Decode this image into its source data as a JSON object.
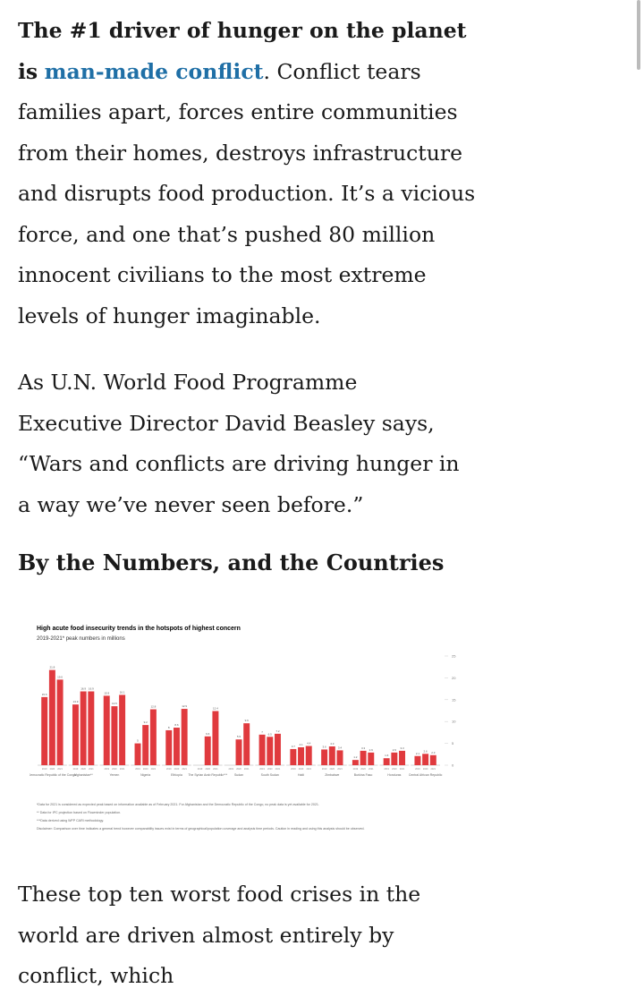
{
  "article": {
    "paragraphs": [
      {
        "bold": "The #1 driver of hunger on the planet is",
        "link": "man-made conflict",
        "text": ". Conflict tears families apart, forces entire communities from their homes, destroys infrastructure and disrupts food production. It’s a vicious force, and one that’s pushed 80 million innocent civilians to the most extreme levels of hunger imaginable."
      },
      {
        "text": "As U.N. World Food Programme Executive Director David Beasley says, “Wars and conflicts are driving hunger in a way we’ve never seen before.”"
      }
    ],
    "heading": "By the Numbers, and the Countries",
    "closing": "These top ten worst food crises in the world are driven almost entirely by conflict, which"
  },
  "chart_data": {
    "type": "bar",
    "title": "High acute food insecurity trends in the hotspots of highest concern",
    "subtitle": "2019-2021* peak numbers in millions",
    "categories": [
      "Democratic Republic of the Congo",
      "Afghanistan**",
      "Yemen",
      "Nigeria",
      "Ethiopia",
      "The Syrian Arab Republic***",
      "Sudan",
      "South Sudan",
      "Haiti",
      "Zimbabwe",
      "Burkina Faso",
      "Honduras",
      "Central African Republic"
    ],
    "series": [
      {
        "name": "2019",
        "color": "#e03a3e",
        "values": [
          15.6,
          13.9,
          15.9,
          5.0,
          8.0,
          null,
          null,
          7.0,
          3.7,
          3.6,
          1.2,
          1.6,
          2.1
        ]
      },
      {
        "name": "2020",
        "color": "#e03a3e",
        "values": [
          21.8,
          16.9,
          13.5,
          9.2,
          8.6,
          6.6,
          5.9,
          6.5,
          4.1,
          4.3,
          3.3,
          2.9,
          2.6
        ]
      },
      {
        "name": "2021",
        "color": "#e03a3e",
        "values": [
          19.6,
          16.9,
          16.1,
          12.8,
          12.9,
          12.4,
          9.6,
          7.2,
          4.4,
          3.4,
          2.9,
          3.3,
          2.3
        ]
      }
    ],
    "ylim": [
      0,
      25
    ],
    "yticks": [
      0,
      5,
      10,
      15,
      20,
      25
    ],
    "footnotes": [
      "*Data for 2021 is considered as expected peak based on information available as of February 2021. For Afghanistan and the Democratic Republic of the Congo, no peak data is yet available for 2021.",
      "** Data for IPC projection based on Flowminder population.",
      "***Data derived using WFP CARI methodology.",
      "Disclaimer: Comparison over time indicates a general trend however comparability issues exist in terms of geographical/population coverage and analysis time periods. Caution in reading and using this analysis should be observed."
    ]
  }
}
